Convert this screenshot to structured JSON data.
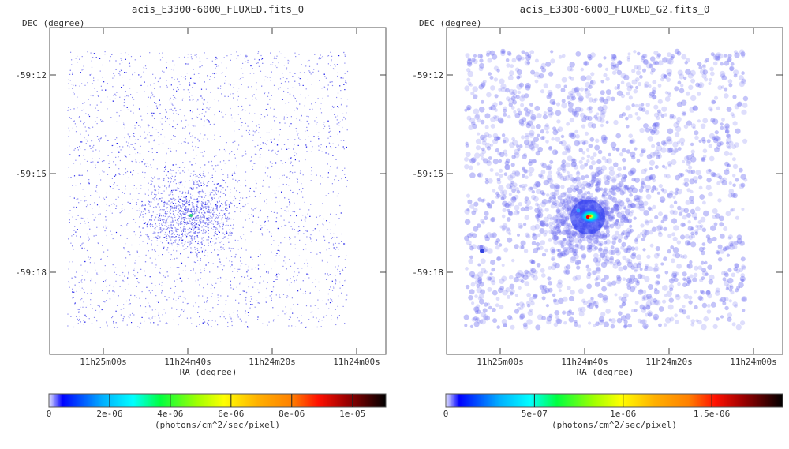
{
  "chart_data": [
    {
      "type": "heatmap",
      "title": "acis_E3300-6000_FLUXED.fits_0",
      "xlabel": "RA (degree)",
      "ylabel": "DEC (degree)",
      "xticks": [
        "11h25m00s",
        "11h24m40s",
        "11h24m20s",
        "11h24m00s"
      ],
      "yticks": [
        "-59:12",
        "-59:15",
        "-59:18"
      ],
      "colorbar": {
        "colormap": "rainbow (white-blue-cyan-green-yellow-orange-red-black)",
        "ticks": [
          "0",
          "2e-06",
          "4e-06",
          "6e-06",
          "8e-06",
          "1e-05"
        ],
        "tick_values": [
          0,
          2e-06,
          4e-06,
          6e-06,
          8e-06,
          1e-05
        ],
        "range": [
          0,
          1.11e-05
        ],
        "label": "(photons/cm^2/sec/pixel)"
      },
      "style": "sparse single-pixel events, concentrated source near center"
    },
    {
      "type": "heatmap",
      "title": "acis_E3300-6000_FLUXED_G2.fits_0",
      "xlabel": "RA (degree)",
      "ylabel": "DEC (degree)",
      "xticks": [
        "11h25m00s",
        "11h24m40s",
        "11h24m20s",
        "11h24m00s"
      ],
      "yticks": [
        "-59:12",
        "-59:15",
        "-59:18"
      ],
      "colorbar": {
        "colormap": "rainbow (white-blue-cyan-green-yellow-orange-red-black)",
        "ticks": [
          "0",
          "5e-07",
          "1e-06",
          "1.5e-06"
        ],
        "tick_values": [
          0,
          5e-07,
          1e-06,
          1.5e-06
        ],
        "range": [
          0,
          1.9e-06
        ],
        "label": "(photons/cm^2/sec/pixel)"
      },
      "style": "gaussian-smoothed, bright source near center"
    }
  ]
}
